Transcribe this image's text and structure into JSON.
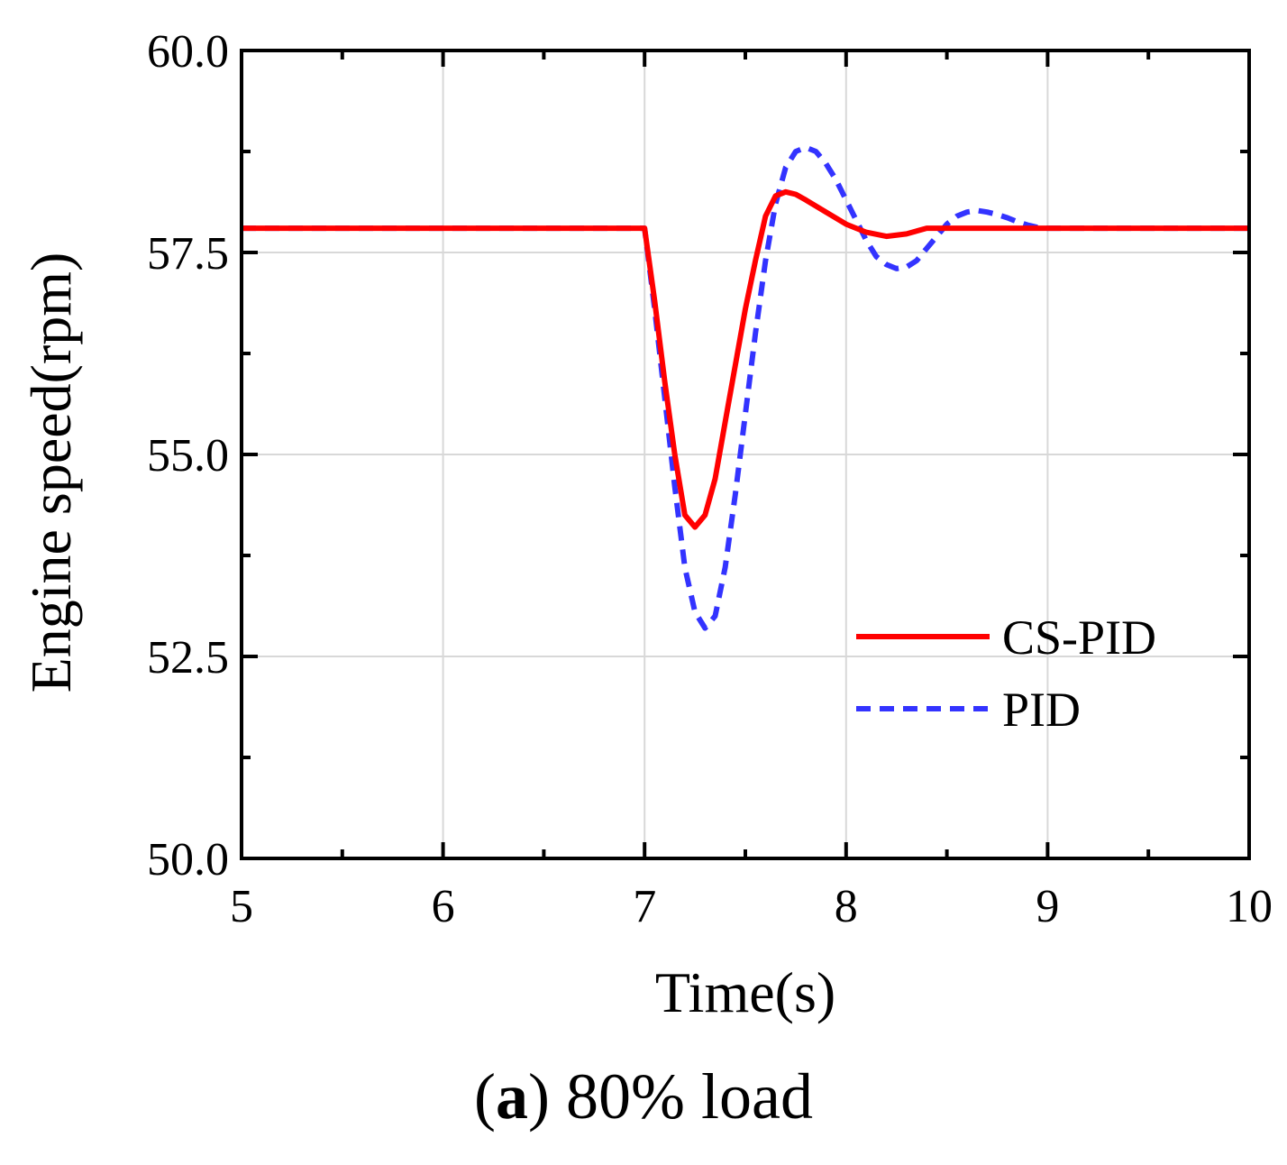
{
  "chart_data": {
    "type": "line",
    "xlabel": "Time(s)",
    "ylabel": "Engine speed(rpm)",
    "xlim": [
      5,
      10
    ],
    "ylim": [
      50,
      60
    ],
    "x_ticks": [
      "5",
      "6",
      "7",
      "8",
      "9",
      "10"
    ],
    "y_ticks": [
      "50.0",
      "52.5",
      "55.0",
      "57.5",
      "60.0"
    ],
    "grid": true,
    "legend_position": "lower-right",
    "series": [
      {
        "name": "CS-PID",
        "color": "#ff0000",
        "style": "solid",
        "x": [
          5.0,
          7.0,
          7.05,
          7.1,
          7.15,
          7.2,
          7.25,
          7.3,
          7.35,
          7.4,
          7.45,
          7.5,
          7.55,
          7.6,
          7.65,
          7.7,
          7.75,
          7.8,
          7.9,
          8.0,
          8.1,
          8.2,
          8.3,
          8.4,
          8.5,
          8.75,
          9.0,
          10.0
        ],
        "y": [
          57.8,
          57.8,
          56.9,
          55.9,
          55.0,
          54.25,
          54.1,
          54.25,
          54.7,
          55.4,
          56.1,
          56.8,
          57.4,
          57.95,
          58.2,
          58.25,
          58.22,
          58.15,
          58.0,
          57.85,
          57.75,
          57.7,
          57.73,
          57.8,
          57.8,
          57.8,
          57.8,
          57.8
        ]
      },
      {
        "name": "PID",
        "color": "#3333ff",
        "style": "dashed",
        "x": [
          5.0,
          7.0,
          7.05,
          7.1,
          7.15,
          7.2,
          7.25,
          7.3,
          7.35,
          7.4,
          7.45,
          7.5,
          7.55,
          7.6,
          7.65,
          7.7,
          7.75,
          7.8,
          7.85,
          7.9,
          7.95,
          8.0,
          8.05,
          8.1,
          8.15,
          8.2,
          8.25,
          8.3,
          8.35,
          8.4,
          8.45,
          8.5,
          8.55,
          8.6,
          8.65,
          8.7,
          8.75,
          8.8,
          8.85,
          8.9,
          8.95,
          9.0,
          10.0
        ],
        "y": [
          57.8,
          57.8,
          56.8,
          55.7,
          54.6,
          53.6,
          53.05,
          52.85,
          53.0,
          53.6,
          54.5,
          55.5,
          56.5,
          57.4,
          58.1,
          58.55,
          58.75,
          58.8,
          58.75,
          58.6,
          58.4,
          58.15,
          57.9,
          57.65,
          57.45,
          57.35,
          57.3,
          57.32,
          57.4,
          57.55,
          57.7,
          57.85,
          57.95,
          58.0,
          58.02,
          58.0,
          57.97,
          57.93,
          57.88,
          57.84,
          57.81,
          57.8,
          57.8
        ]
      }
    ]
  },
  "caption": {
    "letter": "a",
    "text": "80% load"
  }
}
